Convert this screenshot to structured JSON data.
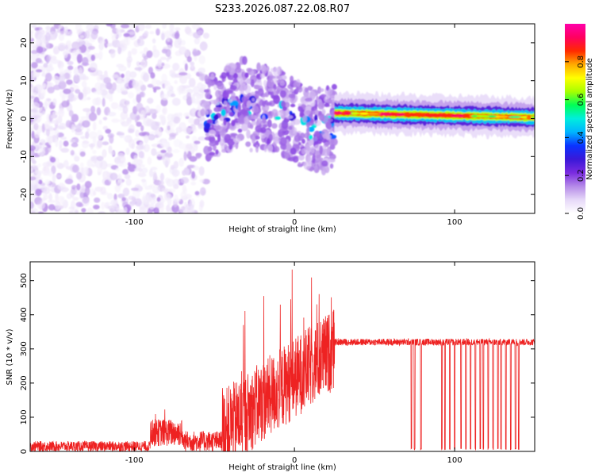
{
  "chart_data": [
    {
      "type": "heatmap",
      "title": "S233.2026.087.22.08.R07",
      "xlabel": "Height of straight line (km)",
      "ylabel": "Frequency (Hz)",
      "xlim": [
        -165,
        150
      ],
      "ylim": [
        -25,
        25
      ],
      "xticks": [
        -100,
        0,
        100
      ],
      "yticks": [
        -20,
        -10,
        0,
        10,
        20
      ],
      "colorbar": {
        "label": "Normalized spectral amplitude",
        "range": [
          0,
          1
        ],
        "ticks": [
          "0.0",
          "0.2",
          "0.4",
          "0.6",
          "0.8"
        ],
        "tick_values": [
          0,
          0.2,
          0.4,
          0.6,
          0.8
        ],
        "colormap": [
          "#ffffff",
          "#e6d8f8",
          "#b58ae8",
          "#7a2be0",
          "#3a18d8",
          "#0a33ff",
          "#00b4ff",
          "#00eedd",
          "#00ff55",
          "#a8ff00",
          "#ffff00",
          "#ffaa00",
          "#ff2a00",
          "#ff0060",
          "#ff00aa"
        ]
      },
      "features": [
        {
          "name": "scattered noise",
          "x_range": [
            -165,
            -55
          ],
          "freq_range": [
            -25,
            25
          ],
          "amplitude": 0.05
        },
        {
          "name": "turbulent signal",
          "x_range": [
            -55,
            25
          ],
          "freq_range": [
            -10,
            10
          ],
          "amplitude": 0.3
        },
        {
          "name": "coherent tone",
          "x_range": [
            25,
            150
          ],
          "freq_start": 1.5,
          "freq_end": 0.3,
          "amplitude": 0.95
        }
      ]
    },
    {
      "type": "line",
      "xlabel": "Height of straight line (km)",
      "ylabel": "SNR (10 * v/v)",
      "xlim": [
        -165,
        150
      ],
      "ylim": [
        0,
        555
      ],
      "xticks": [
        -100,
        0,
        100
      ],
      "yticks": [
        0,
        100,
        200,
        300,
        400,
        500
      ],
      "series": [
        {
          "name": "SNR",
          "color": "#ee2222",
          "segments": [
            {
              "x": [
                -165,
                -90
              ],
              "baseline": 15,
              "noise": 15
            },
            {
              "x": [
                -90,
                -70
              ],
              "baseline": 55,
              "noise": 40,
              "peak": 145
            },
            {
              "x": [
                -70,
                -45
              ],
              "baseline": 30,
              "noise": 30
            },
            {
              "x": [
                -45,
                25
              ],
              "baseline_start": 60,
              "baseline_end": 300,
              "noise": 120,
              "peak": 555
            },
            {
              "x": [
                25,
                150
              ],
              "baseline": 320,
              "noise": 10
            }
          ],
          "dropouts_x": [
            73,
            75,
            79,
            92,
            94,
            97,
            100,
            104,
            107,
            110,
            113,
            116,
            118,
            121,
            124,
            127,
            129,
            132,
            135,
            138,
            140
          ]
        }
      ]
    }
  ]
}
